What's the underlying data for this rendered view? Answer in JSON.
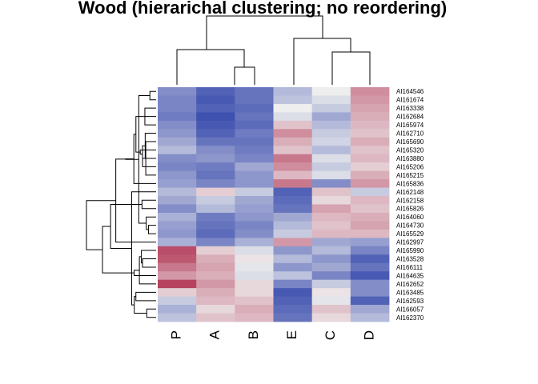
{
  "chart_data": {
    "type": "heatmap",
    "title": "Wood (hierarichal clustering; no reordering)",
    "columns": [
      "P",
      "A",
      "B",
      "E",
      "C",
      "D"
    ],
    "row_labels": [
      "AI164546",
      "AI161674",
      "AI163338",
      "AI162684",
      "AI165974",
      "AI162710",
      "AI165690",
      "AI165320",
      "AI163880",
      "AI165206",
      "AI165215",
      "AI165836",
      "AI162148",
      "AI162158",
      "AI165826",
      "AI164060",
      "AI164730",
      "AI165529",
      "AI162997",
      "AI165990",
      "AI163528",
      "AI166111",
      "AI164635",
      "AI162652",
      "AI163485",
      "AI162593",
      "AI166057",
      "AI162370"
    ],
    "value_range": [
      -1,
      1
    ],
    "colors": {
      "low": "#2b3fa8",
      "mid": "#eeeeee",
      "high": "#a8173c"
    },
    "column_dendrogram": {
      "groups": [
        [
          "P",
          [
            "A",
            "B"
          ]
        ],
        [
          "E",
          [
            "C",
            "D"
          ]
        ]
      ]
    },
    "values": [
      [
        -0.55,
        -0.8,
        -0.7,
        -0.3,
        0.0,
        0.45
      ],
      [
        -0.6,
        -0.85,
        -0.7,
        -0.25,
        -0.1,
        0.4
      ],
      [
        -0.6,
        -0.8,
        -0.75,
        0.0,
        -0.2,
        0.35
      ],
      [
        -0.65,
        -0.9,
        -0.7,
        -0.1,
        -0.4,
        0.3
      ],
      [
        -0.55,
        -0.85,
        -0.75,
        0.2,
        -0.3,
        0.25
      ],
      [
        -0.5,
        -0.8,
        -0.65,
        0.45,
        -0.2,
        0.2
      ],
      [
        -0.4,
        -0.7,
        -0.7,
        0.3,
        -0.15,
        0.3
      ],
      [
        -0.3,
        -0.55,
        -0.65,
        0.2,
        -0.3,
        0.2
      ],
      [
        -0.55,
        -0.5,
        -0.6,
        0.55,
        -0.1,
        0.25
      ],
      [
        -0.6,
        -0.65,
        -0.4,
        0.45,
        -0.2,
        0.15
      ],
      [
        -0.5,
        -0.7,
        -0.5,
        0.25,
        -0.1,
        0.3
      ],
      [
        -0.45,
        -0.6,
        -0.5,
        0.55,
        -0.55,
        0.4
      ],
      [
        -0.3,
        0.15,
        -0.2,
        -0.8,
        0.2,
        -0.2
      ],
      [
        -0.4,
        -0.2,
        -0.4,
        -0.75,
        0.1,
        0.25
      ],
      [
        -0.55,
        -0.3,
        -0.45,
        -0.7,
        0.35,
        0.2
      ],
      [
        -0.35,
        -0.65,
        -0.5,
        -0.4,
        0.25,
        0.3
      ],
      [
        -0.45,
        -0.7,
        -0.6,
        -0.3,
        0.2,
        0.35
      ],
      [
        -0.5,
        -0.75,
        -0.55,
        -0.2,
        0.25,
        0.25
      ],
      [
        -0.35,
        -0.6,
        -0.35,
        0.4,
        -0.4,
        -0.45
      ],
      [
        0.75,
        0.15,
        -0.1,
        -0.5,
        -0.3,
        -0.6
      ],
      [
        0.7,
        0.3,
        0.05,
        -0.3,
        -0.5,
        -0.8
      ],
      [
        0.55,
        0.35,
        -0.05,
        -0.5,
        -0.4,
        -0.7
      ],
      [
        0.4,
        0.3,
        -0.1,
        -0.25,
        -0.6,
        -0.85
      ],
      [
        0.8,
        0.4,
        0.1,
        -0.6,
        -0.2,
        -0.55
      ],
      [
        0.15,
        0.3,
        0.1,
        -0.85,
        0.05,
        -0.55
      ],
      [
        -0.2,
        0.25,
        0.2,
        -0.8,
        -0.05,
        -0.8
      ],
      [
        -0.35,
        0.1,
        0.3,
        -0.75,
        0.2,
        -0.4
      ],
      [
        -0.25,
        0.2,
        0.25,
        -0.7,
        0.1,
        -0.3
      ]
    ]
  }
}
